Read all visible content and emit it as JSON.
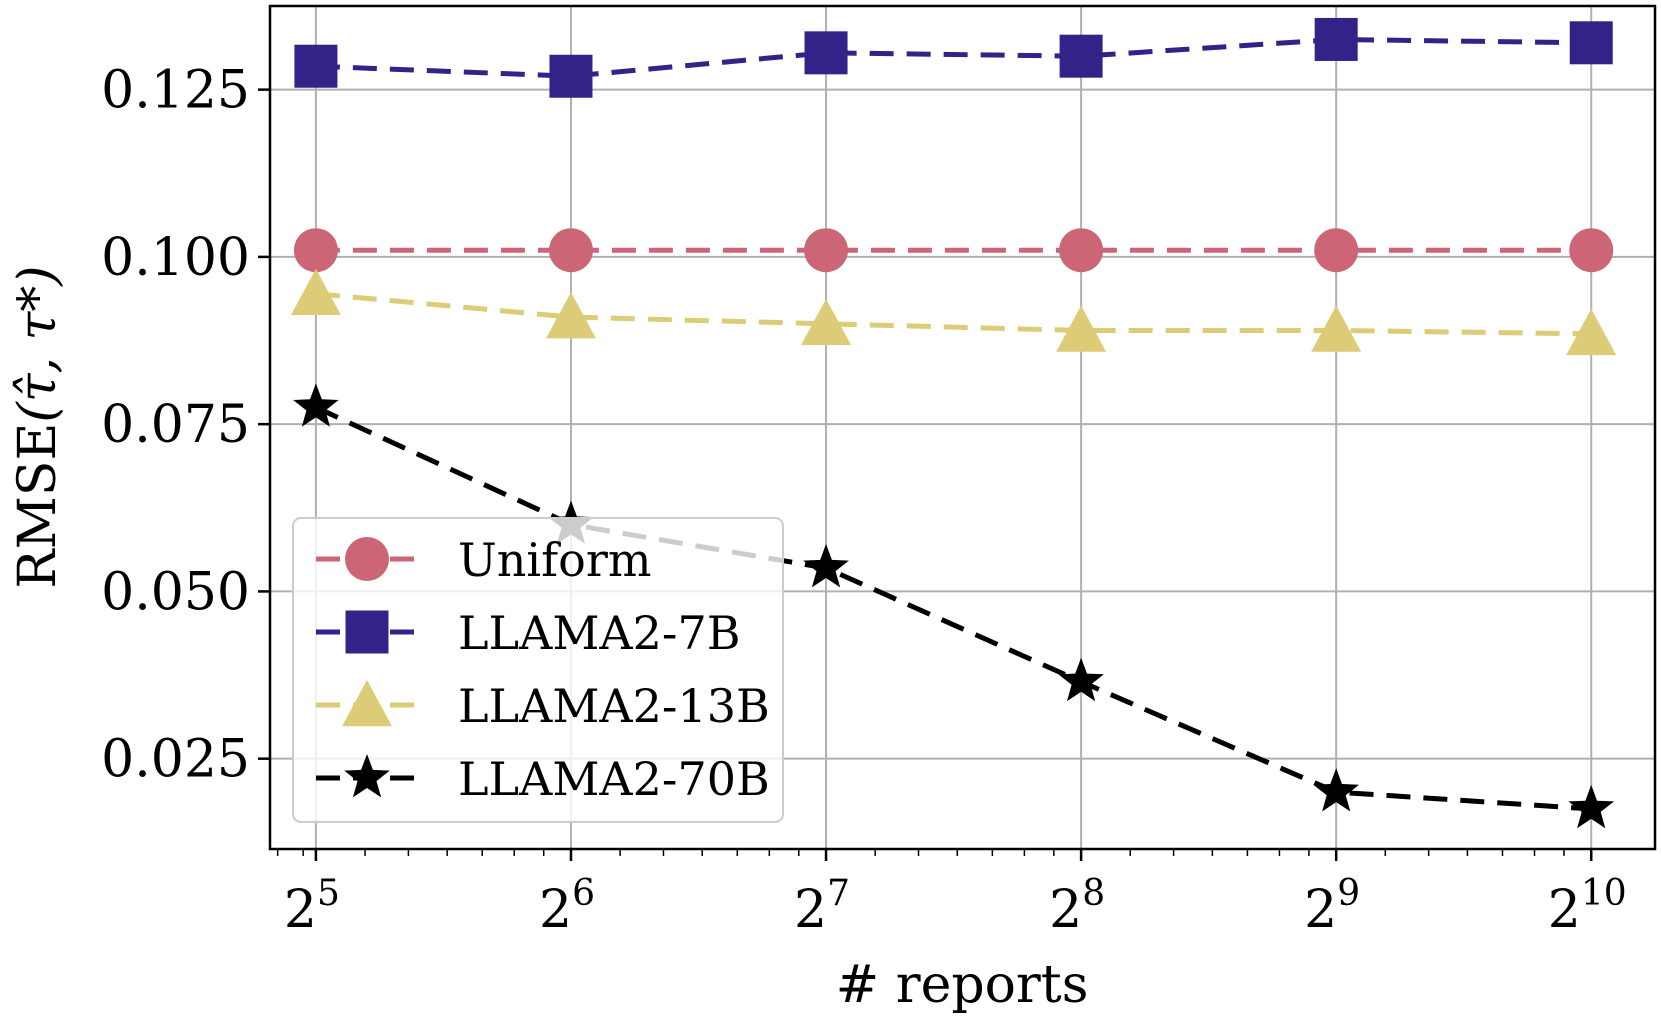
{
  "chart_data": {
    "type": "line",
    "title": "",
    "xlabel": "# reports",
    "ylabel_text": "RMSE",
    "ylabel_args": "(τ̂, τ*)",
    "x": [
      5,
      6,
      7,
      8,
      9,
      10
    ],
    "x_tick_base": "2",
    "x_tick_exponents": [
      "5",
      "6",
      "7",
      "8",
      "9",
      "10"
    ],
    "x_scale": "log2",
    "y_ticks": [
      "0.025",
      "0.050",
      "0.075",
      "0.100",
      "0.125"
    ],
    "ylim": [
      0.0115,
      0.1375
    ],
    "grid": true,
    "legend_position": "center-left",
    "series": [
      {
        "name": "Uniform",
        "color": "#CC6677",
        "marker": "circle",
        "values": [
          0.101,
          0.101,
          0.101,
          0.101,
          0.101,
          0.101
        ]
      },
      {
        "name": "LLAMA2-7B",
        "color": "#332288",
        "marker": "square",
        "values": [
          0.1285,
          0.127,
          0.1305,
          0.13,
          0.1325,
          0.132
        ]
      },
      {
        "name": "LLAMA2-13B",
        "color": "#DDCC77",
        "marker": "triangle",
        "values": [
          0.0945,
          0.091,
          0.09,
          0.089,
          0.089,
          0.0885
        ]
      },
      {
        "name": "LLAMA2-70B",
        "color": "#000000",
        "marker": "star",
        "values": [
          0.0775,
          0.06,
          0.0535,
          0.0365,
          0.02,
          0.0175
        ]
      }
    ]
  }
}
